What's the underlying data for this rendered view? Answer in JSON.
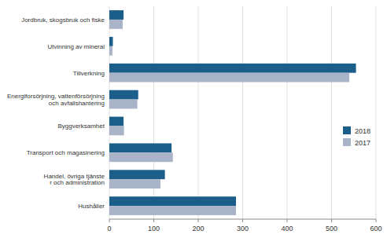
{
  "chart_data": {
    "type": "bar",
    "orientation": "horizontal",
    "categories": [
      "Jordbruk, skogsbruk och fiske",
      "Utvinning av mineral",
      "Tillverkning",
      "Energiforsörjning, vattenförsörjning\noch avfallshantering",
      "Byggverksamhet",
      "Transport och magasinering",
      "Handel, övriga tjänste\nr och administration",
      "Hushåller"
    ],
    "series": [
      {
        "name": "2018",
        "color": "#1b5e8a",
        "values": [
          32,
          8,
          555,
          65,
          32,
          140,
          125,
          285
        ]
      },
      {
        "name": "2017",
        "color": "#a9b4c8",
        "values": [
          30,
          7,
          540,
          63,
          33,
          143,
          115,
          285
        ]
      }
    ],
    "xlim": [
      0,
      600
    ],
    "xticks": [
      0,
      100,
      200,
      300,
      400,
      500,
      600
    ],
    "grid": true,
    "legend": "right"
  }
}
